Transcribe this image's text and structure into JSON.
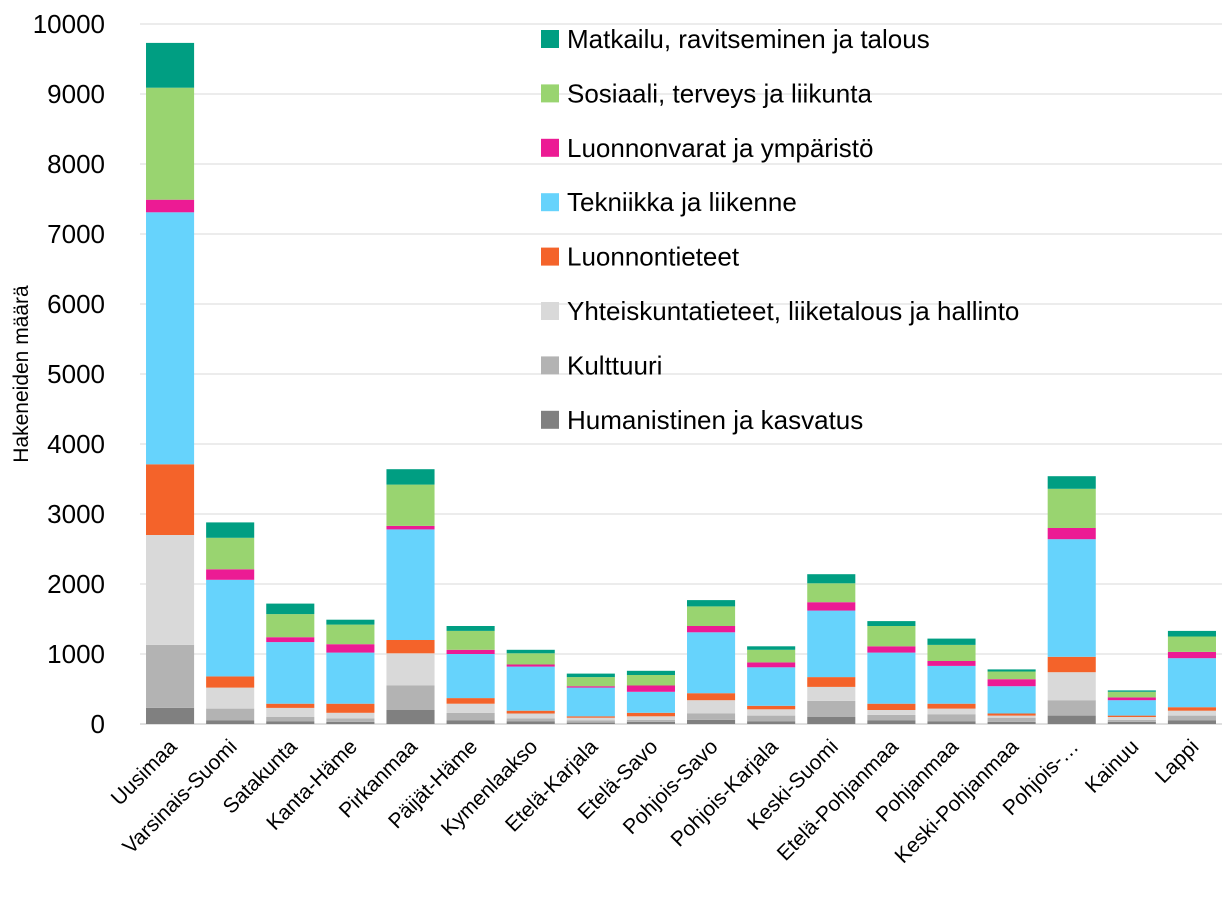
{
  "chart_data": {
    "type": "bar",
    "stacked": true,
    "y_label": "Hakeneiden määrä",
    "categories": [
      "Uusimaa",
      "Varsinais-Suomi",
      "Satakunta",
      "Kanta-Häme",
      "Pirkanmaa",
      "Päijät-Häme",
      "Kymenlaakso",
      "Etelä-Karjala",
      "Etelä-Savo",
      "Pohjois-Savo",
      "Pohjois-Karjala",
      "Keski-Suomi",
      "Etelä-Pohjanmaa",
      "Pohjanmaa",
      "Keski-Pohjanmaa",
      "Pohjois-…",
      "Kainuu",
      "Lappi"
    ],
    "series": [
      {
        "name": "Humanistinen ja kasvatus",
        "color": "#808080",
        "values": [
          230,
          50,
          40,
          30,
          200,
          50,
          40,
          20,
          30,
          60,
          40,
          100,
          50,
          40,
          30,
          120,
          30,
          50
        ]
      },
      {
        "name": "Kulttuuri",
        "color": "#b3b3b3",
        "values": [
          900,
          170,
          60,
          50,
          350,
          110,
          40,
          30,
          30,
          90,
          80,
          230,
          80,
          100,
          60,
          220,
          30,
          70
        ]
      },
      {
        "name": "Yhteiskuntatieteet, liiketalous ja hallinto",
        "color": "#d9d9d9",
        "values": [
          1570,
          300,
          130,
          80,
          460,
          130,
          70,
          40,
          50,
          190,
          90,
          200,
          70,
          80,
          30,
          400,
          40,
          70
        ]
      },
      {
        "name": "Luonnontieteet",
        "color": "#f4632a",
        "values": [
          1010,
          160,
          60,
          130,
          190,
          80,
          40,
          20,
          50,
          100,
          50,
          140,
          90,
          70,
          30,
          220,
          20,
          50
        ]
      },
      {
        "name": "Tekniikka ja liikenne",
        "color": "#66d3fc",
        "values": [
          3600,
          1380,
          880,
          730,
          1580,
          630,
          630,
          410,
          300,
          870,
          550,
          950,
          730,
          540,
          390,
          1680,
          220,
          700
        ]
      },
      {
        "name": "Luonnonvarat ja ympäristö",
        "color": "#ec1b94",
        "values": [
          180,
          150,
          70,
          120,
          50,
          60,
          30,
          20,
          90,
          90,
          70,
          120,
          90,
          70,
          100,
          160,
          40,
          90
        ]
      },
      {
        "name": "Sosiaali, terveys ja liikunta",
        "color": "#99d470",
        "values": [
          1600,
          450,
          330,
          280,
          590,
          270,
          160,
          130,
          150,
          280,
          180,
          270,
          290,
          230,
          110,
          560,
          80,
          220
        ]
      },
      {
        "name": "Matkailu, ravitseminen ja talous",
        "color": "#009e82",
        "values": [
          640,
          220,
          150,
          70,
          220,
          70,
          50,
          50,
          60,
          90,
          50,
          130,
          70,
          90,
          30,
          180,
          20,
          80
        ]
      }
    ],
    "ylim": [
      0,
      10000
    ],
    "yticks": [
      0,
      1000,
      2000,
      3000,
      4000,
      5000,
      6000,
      7000,
      8000,
      9000,
      10000
    ],
    "grid": true,
    "legend": "top-right"
  }
}
